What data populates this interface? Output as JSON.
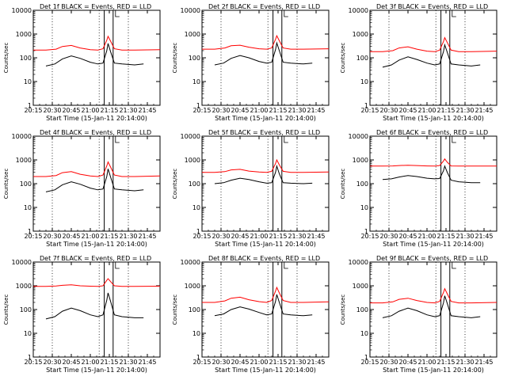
{
  "figure": {
    "time_axis_label": "Start Time (15-Jan-11 20:14:00)",
    "y_axis_label": "Counts/sec",
    "background": "#ffffff",
    "colors": {
      "events": "#000000",
      "lld": "#ff0000",
      "frame": "#000000"
    }
  },
  "chart_data": [
    {
      "type": "line",
      "title": "Det 1f BLACK = Events, RED = LLD",
      "xlabel": "Start Time (15-Jan-11 20:14:00)",
      "ylabel": "Counts/sec",
      "yscale": "log",
      "xlim": [
        "20:15",
        "21:55"
      ],
      "ylim": [
        1,
        10000
      ],
      "x_ticks": [
        "20:15",
        "20:30",
        "20:45",
        "21:00",
        "21:15",
        "21:30",
        "21:45"
      ],
      "y_ticks": [
        "1",
        "10",
        "100",
        "1000",
        "10000"
      ],
      "vlines_dotted": [
        "20:30",
        "21:07",
        "21:30"
      ],
      "vlines_solid": [
        "21:11",
        "21:18"
      ],
      "series": [
        {
          "name": "LLD",
          "color": "#ff0000",
          "x": [
            "20:15",
            "20:25",
            "20:33",
            "20:38",
            "20:45",
            "20:52",
            "21:00",
            "21:06",
            "21:10",
            "21:13",
            "21:14",
            "21:16",
            "21:19",
            "21:25",
            "21:35",
            "21:55"
          ],
          "values": [
            210,
            210,
            230,
            300,
            330,
            260,
            220,
            210,
            240,
            550,
            800,
            500,
            240,
            210,
            210,
            220
          ]
        },
        {
          "name": "Events",
          "color": "#000000",
          "x": [
            "20:25",
            "20:32",
            "20:38",
            "20:45",
            "20:52",
            "21:00",
            "21:06",
            "21:10",
            "21:13",
            "21:14",
            "21:16",
            "21:19",
            "21:25",
            "21:35",
            "21:42"
          ],
          "values": [
            45,
            55,
            90,
            120,
            95,
            65,
            55,
            60,
            200,
            400,
            180,
            60,
            55,
            50,
            55
          ]
        }
      ]
    },
    {
      "type": "line",
      "title": "Det 2f BLACK = Events, RED = LLD",
      "xlabel": "Start Time (15-Jan-11 20:14:00)",
      "ylabel": "Counts/sec",
      "yscale": "log",
      "xlim": [
        "20:15",
        "21:55"
      ],
      "ylim": [
        1,
        10000
      ],
      "x_ticks": [
        "20:15",
        "20:30",
        "20:45",
        "21:00",
        "21:15",
        "21:30",
        "21:45"
      ],
      "y_ticks": [
        "1",
        "10",
        "100",
        "1000",
        "10000"
      ],
      "vlines_dotted": [
        "20:30",
        "21:07",
        "21:30"
      ],
      "vlines_solid": [
        "21:11",
        "21:18"
      ],
      "series": [
        {
          "name": "LLD",
          "color": "#ff0000",
          "x": [
            "20:15",
            "20:25",
            "20:33",
            "20:38",
            "20:45",
            "20:52",
            "21:00",
            "21:06",
            "21:10",
            "21:13",
            "21:14",
            "21:16",
            "21:19",
            "21:25",
            "21:35",
            "21:55"
          ],
          "values": [
            230,
            230,
            260,
            320,
            340,
            280,
            240,
            230,
            260,
            600,
            850,
            520,
            260,
            230,
            230,
            240
          ]
        },
        {
          "name": "Events",
          "color": "#000000",
          "x": [
            "20:25",
            "20:32",
            "20:38",
            "20:45",
            "20:52",
            "21:00",
            "21:06",
            "21:10",
            "21:13",
            "21:14",
            "21:16",
            "21:19",
            "21:25",
            "21:35",
            "21:42"
          ],
          "values": [
            50,
            60,
            95,
            125,
            100,
            70,
            60,
            65,
            220,
            420,
            200,
            65,
            60,
            55,
            60
          ]
        }
      ]
    },
    {
      "type": "line",
      "title": "Det 3f BLACK = Events, RED = LLD",
      "xlabel": "Start Time (15-Jan-11 20:14:00)",
      "ylabel": "Counts/sec",
      "yscale": "log",
      "xlim": [
        "20:15",
        "21:55"
      ],
      "ylim": [
        1,
        10000
      ],
      "x_ticks": [
        "20:15",
        "20:30",
        "20:45",
        "21:00",
        "21:15",
        "21:30",
        "21:45"
      ],
      "y_ticks": [
        "1",
        "10",
        "100",
        "1000",
        "10000"
      ],
      "vlines_dotted": [
        "20:30",
        "21:07",
        "21:30"
      ],
      "vlines_solid": [
        "21:11",
        "21:18"
      ],
      "series": [
        {
          "name": "LLD",
          "color": "#ff0000",
          "x": [
            "20:15",
            "20:25",
            "20:33",
            "20:38",
            "20:45",
            "20:52",
            "21:00",
            "21:06",
            "21:10",
            "21:13",
            "21:14",
            "21:16",
            "21:19",
            "21:25",
            "21:35",
            "21:55"
          ],
          "values": [
            180,
            180,
            200,
            260,
            290,
            230,
            190,
            180,
            210,
            480,
            700,
            440,
            210,
            180,
            180,
            190
          ]
        },
        {
          "name": "Events",
          "color": "#000000",
          "x": [
            "20:25",
            "20:32",
            "20:38",
            "20:45",
            "20:52",
            "21:00",
            "21:06",
            "21:10",
            "21:13",
            "21:14",
            "21:16",
            "21:19",
            "21:25",
            "21:35",
            "21:42"
          ],
          "values": [
            40,
            50,
            80,
            110,
            85,
            60,
            50,
            55,
            180,
            350,
            170,
            55,
            50,
            45,
            50
          ]
        }
      ]
    },
    {
      "type": "line",
      "title": "Det 4f BLACK = Events, RED = LLD",
      "xlabel": "Start Time (15-Jan-11 20:14:00)",
      "ylabel": "Counts/sec",
      "yscale": "log",
      "xlim": [
        "20:15",
        "21:55"
      ],
      "ylim": [
        1,
        10000
      ],
      "x_ticks": [
        "20:15",
        "20:30",
        "20:45",
        "21:00",
        "21:15",
        "21:30",
        "21:45"
      ],
      "y_ticks": [
        "1",
        "10",
        "100",
        "1000",
        "10000"
      ],
      "vlines_dotted": [
        "20:30",
        "21:07",
        "21:30"
      ],
      "vlines_solid": [
        "21:11",
        "21:18"
      ],
      "series": [
        {
          "name": "LLD",
          "color": "#ff0000",
          "x": [
            "20:15",
            "20:25",
            "20:33",
            "20:38",
            "20:45",
            "20:52",
            "21:00",
            "21:06",
            "21:10",
            "21:13",
            "21:14",
            "21:16",
            "21:19",
            "21:25",
            "21:35",
            "21:55"
          ],
          "values": [
            200,
            200,
            220,
            290,
            320,
            250,
            210,
            200,
            230,
            560,
            820,
            500,
            230,
            200,
            200,
            210
          ]
        },
        {
          "name": "Events",
          "color": "#000000",
          "x": [
            "20:25",
            "20:32",
            "20:38",
            "20:45",
            "20:52",
            "21:00",
            "21:06",
            "21:10",
            "21:13",
            "21:14",
            "21:16",
            "21:19",
            "21:25",
            "21:35",
            "21:42"
          ],
          "values": [
            45,
            55,
            90,
            120,
            95,
            65,
            55,
            60,
            200,
            420,
            190,
            60,
            55,
            50,
            55
          ]
        }
      ]
    },
    {
      "type": "line",
      "title": "Det 5f BLACK = Events, RED = LLD",
      "xlabel": "Start Time (15-Jan-11 20:14:00)",
      "ylabel": "Counts/sec",
      "yscale": "log",
      "xlim": [
        "20:15",
        "21:55"
      ],
      "ylim": [
        1,
        10000
      ],
      "x_ticks": [
        "20:15",
        "20:30",
        "20:45",
        "21:00",
        "21:15",
        "21:30",
        "21:45"
      ],
      "y_ticks": [
        "1",
        "10",
        "100",
        "1000",
        "10000"
      ],
      "vlines_dotted": [
        "20:30",
        "21:07",
        "21:30"
      ],
      "vlines_solid": [
        "21:11",
        "21:18"
      ],
      "series": [
        {
          "name": "LLD",
          "color": "#ff0000",
          "x": [
            "20:15",
            "20:25",
            "20:33",
            "20:38",
            "20:45",
            "20:52",
            "21:00",
            "21:06",
            "21:10",
            "21:13",
            "21:14",
            "21:16",
            "21:19",
            "21:25",
            "21:35",
            "21:55"
          ],
          "values": [
            300,
            300,
            320,
            380,
            400,
            340,
            310,
            300,
            330,
            700,
            1000,
            620,
            330,
            300,
            300,
            310
          ]
        },
        {
          "name": "Events",
          "color": "#000000",
          "x": [
            "20:25",
            "20:32",
            "20:38",
            "20:45",
            "20:52",
            "21:00",
            "21:06",
            "21:10",
            "21:13",
            "21:14",
            "21:16",
            "21:19",
            "21:25",
            "21:35",
            "21:42"
          ],
          "values": [
            100,
            110,
            140,
            170,
            150,
            120,
            105,
            110,
            300,
            550,
            260,
            110,
            105,
            100,
            105
          ]
        }
      ]
    },
    {
      "type": "line",
      "title": "Det 6f BLACK = Events, RED = LLD",
      "xlabel": "Start Time (15-Jan-11 20:14:00)",
      "ylabel": "Counts/sec",
      "yscale": "log",
      "xlim": [
        "20:15",
        "21:55"
      ],
      "ylim": [
        1,
        10000
      ],
      "x_ticks": [
        "20:15",
        "20:30",
        "20:45",
        "21:00",
        "21:15",
        "21:30",
        "21:45"
      ],
      "y_ticks": [
        "1",
        "10",
        "100",
        "1000",
        "10000"
      ],
      "vlines_dotted": [
        "20:30",
        "21:07",
        "21:30"
      ],
      "vlines_solid": [
        "21:11",
        "21:18"
      ],
      "series": [
        {
          "name": "LLD",
          "color": "#ff0000",
          "x": [
            "20:15",
            "20:25",
            "20:33",
            "20:38",
            "20:45",
            "20:52",
            "21:00",
            "21:06",
            "21:10",
            "21:13",
            "21:14",
            "21:16",
            "21:19",
            "21:25",
            "21:35",
            "21:55"
          ],
          "values": [
            550,
            550,
            560,
            580,
            600,
            580,
            560,
            550,
            580,
            900,
            1100,
            800,
            560,
            550,
            550,
            550
          ]
        },
        {
          "name": "Events",
          "color": "#000000",
          "x": [
            "20:25",
            "20:32",
            "20:38",
            "20:45",
            "20:52",
            "21:00",
            "21:06",
            "21:10",
            "21:13",
            "21:14",
            "21:16",
            "21:19",
            "21:25",
            "21:35",
            "21:42"
          ],
          "values": [
            150,
            160,
            190,
            220,
            200,
            170,
            160,
            165,
            350,
            550,
            300,
            140,
            120,
            110,
            110
          ]
        }
      ]
    },
    {
      "type": "line",
      "title": "Det 7f BLACK = Events, RED = LLD",
      "xlabel": "Start Time (15-Jan-11 20:14:00)",
      "ylabel": "Counts/sec",
      "yscale": "log",
      "xlim": [
        "20:15",
        "21:55"
      ],
      "ylim": [
        1,
        10000
      ],
      "x_ticks": [
        "20:15",
        "20:30",
        "20:45",
        "21:00",
        "21:15",
        "21:30",
        "21:45"
      ],
      "y_ticks": [
        "1",
        "10",
        "100",
        "1000",
        "10000"
      ],
      "vlines_dotted": [
        "20:30",
        "21:07",
        "21:30"
      ],
      "vlines_solid": [
        "21:11",
        "21:18"
      ],
      "series": [
        {
          "name": "LLD",
          "color": "#ff0000",
          "x": [
            "20:15",
            "20:25",
            "20:33",
            "20:38",
            "20:45",
            "20:52",
            "21:00",
            "21:06",
            "21:10",
            "21:13",
            "21:14",
            "21:16",
            "21:19",
            "21:25",
            "21:35",
            "21:55"
          ],
          "values": [
            950,
            950,
            980,
            1050,
            1100,
            1000,
            960,
            950,
            1000,
            1700,
            2000,
            1500,
            1000,
            950,
            950,
            960
          ]
        },
        {
          "name": "Events",
          "color": "#000000",
          "x": [
            "20:25",
            "20:32",
            "20:38",
            "20:45",
            "20:52",
            "21:00",
            "21:06",
            "21:10",
            "21:13",
            "21:14",
            "21:16",
            "21:19",
            "21:25",
            "21:35",
            "21:42"
          ],
          "values": [
            40,
            50,
            85,
            115,
            90,
            60,
            50,
            60,
            250,
            500,
            220,
            60,
            50,
            45,
            45
          ]
        }
      ]
    },
    {
      "type": "line",
      "title": "Det 8f BLACK = Events, RED = LLD",
      "xlabel": "Start Time (15-Jan-11 20:14:00)",
      "ylabel": "Counts/sec",
      "yscale": "log",
      "xlim": [
        "20:15",
        "21:55"
      ],
      "ylim": [
        1,
        10000
      ],
      "x_ticks": [
        "20:15",
        "20:30",
        "20:45",
        "21:00",
        "21:15",
        "21:30",
        "21:45"
      ],
      "y_ticks": [
        "1",
        "10",
        "100",
        "1000",
        "10000"
      ],
      "vlines_dotted": [
        "20:30",
        "21:07",
        "21:30"
      ],
      "vlines_solid": [
        "21:11",
        "21:18"
      ],
      "series": [
        {
          "name": "LLD",
          "color": "#ff0000",
          "x": [
            "20:15",
            "20:25",
            "20:33",
            "20:38",
            "20:45",
            "20:52",
            "21:00",
            "21:06",
            "21:10",
            "21:13",
            "21:14",
            "21:16",
            "21:19",
            "21:25",
            "21:35",
            "21:55"
          ],
          "values": [
            200,
            200,
            230,
            300,
            330,
            260,
            215,
            200,
            240,
            600,
            850,
            500,
            240,
            200,
            200,
            210
          ]
        },
        {
          "name": "Events",
          "color": "#000000",
          "x": [
            "20:25",
            "20:32",
            "20:38",
            "20:45",
            "20:52",
            "21:00",
            "21:06",
            "21:10",
            "21:13",
            "21:14",
            "21:16",
            "21:19",
            "21:25",
            "21:35",
            "21:42"
          ],
          "values": [
            55,
            65,
            100,
            130,
            105,
            75,
            60,
            65,
            220,
            430,
            200,
            65,
            60,
            55,
            60
          ]
        }
      ]
    },
    {
      "type": "line",
      "title": "Det 9f BLACK = Events, RED = LLD",
      "xlabel": "Start Time (15-Jan-11 20:14:00)",
      "ylabel": "Counts/sec",
      "yscale": "log",
      "xlim": [
        "20:15",
        "21:55"
      ],
      "ylim": [
        1,
        10000
      ],
      "x_ticks": [
        "20:15",
        "20:30",
        "20:45",
        "21:00",
        "21:15",
        "21:30",
        "21:45"
      ],
      "y_ticks": [
        "1",
        "10",
        "100",
        "1000",
        "10000"
      ],
      "vlines_dotted": [
        "20:30",
        "21:07",
        "21:30"
      ],
      "vlines_solid": [
        "21:11",
        "21:18"
      ],
      "series": [
        {
          "name": "LLD",
          "color": "#ff0000",
          "x": [
            "20:15",
            "20:25",
            "20:33",
            "20:38",
            "20:45",
            "20:52",
            "21:00",
            "21:06",
            "21:10",
            "21:13",
            "21:14",
            "21:16",
            "21:19",
            "21:25",
            "21:35",
            "21:55"
          ],
          "values": [
            190,
            190,
            210,
            270,
            300,
            240,
            200,
            190,
            220,
            520,
            750,
            460,
            220,
            190,
            190,
            200
          ]
        },
        {
          "name": "Events",
          "color": "#000000",
          "x": [
            "20:25",
            "20:32",
            "20:38",
            "20:45",
            "20:52",
            "21:00",
            "21:06",
            "21:10",
            "21:13",
            "21:14",
            "21:16",
            "21:19",
            "21:25",
            "21:35",
            "21:42"
          ],
          "values": [
            45,
            55,
            85,
            115,
            90,
            60,
            50,
            55,
            190,
            380,
            180,
            55,
            50,
            45,
            50
          ]
        }
      ]
    }
  ]
}
